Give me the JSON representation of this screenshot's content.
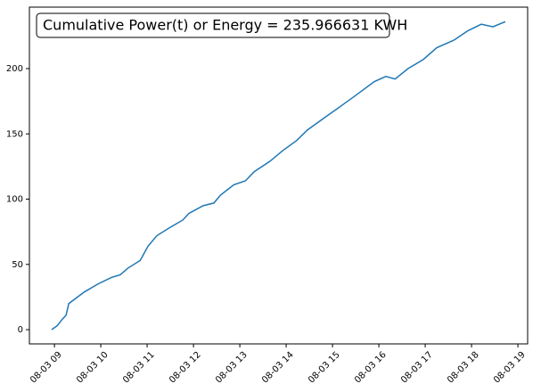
{
  "chart_data": {
    "type": "line",
    "annotation": "Cumulative Power(t) or Energy = 235.966631 KWH",
    "x": [
      8.94,
      9.06,
      9.17,
      9.25,
      9.31,
      9.46,
      9.65,
      9.94,
      10.23,
      10.42,
      10.58,
      10.85,
      11.02,
      11.21,
      11.48,
      11.77,
      11.9,
      12.21,
      12.44,
      12.58,
      12.87,
      13.12,
      13.31,
      13.65,
      13.92,
      14.23,
      14.46,
      14.85,
      15.13,
      15.52,
      15.9,
      16.15,
      16.35,
      16.63,
      16.96,
      17.25,
      17.63,
      17.92,
      18.21,
      18.46,
      18.73
    ],
    "series": [
      {
        "color": "#1f77b4",
        "values": [
          0,
          3,
          8,
          11,
          20,
          24,
          29,
          35,
          40,
          42,
          47,
          53,
          64,
          72,
          78,
          84,
          89,
          95,
          97,
          103,
          111,
          114,
          121,
          129,
          137,
          145,
          153,
          163,
          170,
          180,
          190,
          194,
          192,
          200,
          207,
          216,
          222,
          229,
          234,
          232,
          236
        ]
      }
    ],
    "xlim": [
      8.46,
      19.21
    ],
    "xticks": [
      {
        "value": 9,
        "label": "08-03 09"
      },
      {
        "value": 10,
        "label": "08-03 10"
      },
      {
        "value": 11,
        "label": "08-03 11"
      },
      {
        "value": 12,
        "label": "08-03 12"
      },
      {
        "value": 13,
        "label": "08-03 13"
      },
      {
        "value": 14,
        "label": "08-03 14"
      },
      {
        "value": 15,
        "label": "08-03 15"
      },
      {
        "value": 16,
        "label": "08-03 16"
      },
      {
        "value": 17,
        "label": "08-03 17"
      },
      {
        "value": 18,
        "label": "08-03 18"
      },
      {
        "value": 19,
        "label": "08-03 19"
      }
    ],
    "ylim": [
      -10.9,
      247.1
    ],
    "yticks": [
      0,
      50,
      100,
      150,
      200
    ],
    "grid": false
  }
}
